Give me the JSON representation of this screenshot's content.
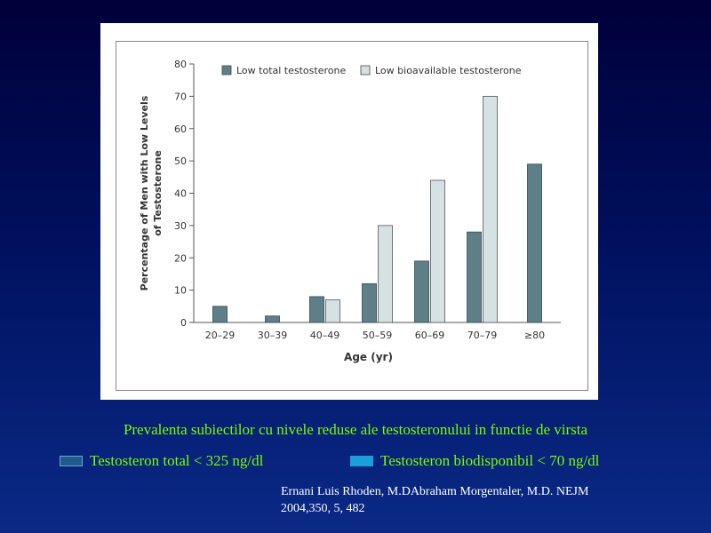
{
  "chart_data": {
    "type": "bar",
    "categories": [
      "20–29",
      "30–39",
      "40–49",
      "50–59",
      "60–69",
      "70–79",
      "≥80"
    ],
    "series": [
      {
        "name": "Low total testosterone",
        "values": [
          5,
          2,
          8,
          12,
          19,
          28,
          49
        ],
        "color": "#5f7f88"
      },
      {
        "name": "Low bioavailable testosterone",
        "values": [
          null,
          null,
          7,
          30,
          44,
          70,
          null
        ],
        "color": "#d6e1e4"
      }
    ],
    "xlabel": "Age (yr)",
    "ylabel_lines": [
      "Percentage of Men with Low Levels",
      "of Testosterone"
    ],
    "ylim": [
      0,
      80
    ],
    "yticks": [
      0,
      10,
      20,
      30,
      40,
      50,
      60,
      70,
      80
    ],
    "grid": false,
    "legend_position": "top"
  },
  "caption": "Prevalenta subiectilor cu nivele reduse ale testosteronului in functie de virsta",
  "legend": [
    {
      "label": "Testosteron total < 325 ng/dl",
      "color": "#1f5a8a"
    },
    {
      "label": "Testosteron biodisponibil < 70 ng/dl",
      "color": "#1aa0d8"
    }
  ],
  "reference": {
    "line1": "Ernani Luis Rhoden, M.DAbraham Morgentaler, M.D. NEJM",
    "line2": "2004,350, 5, 482"
  }
}
